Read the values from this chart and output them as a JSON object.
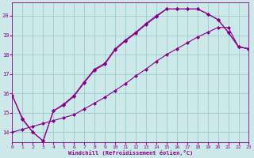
{
  "xlabel": "Windchill (Refroidissement éolien,°C)",
  "background_color": "#cce8e8",
  "grid_color": "#99cccc",
  "line_color": "#880088",
  "series": [
    {
      "x": [
        0,
        1,
        2,
        3,
        4,
        5,
        6,
        7,
        8,
        9,
        10,
        11,
        12,
        13,
        14,
        15,
        16,
        17,
        18,
        19,
        20,
        21,
        22,
        23
      ],
      "y": [
        15.9,
        14.7,
        14.0,
        13.55,
        15.1,
        15.4,
        15.85,
        16.55,
        17.2,
        17.5,
        18.25,
        18.7,
        19.1,
        19.55,
        19.95,
        20.35,
        20.35,
        20.35,
        20.35,
        20.1,
        19.8,
        19.15,
        18.4,
        18.3
      ]
    },
    {
      "x": [
        0,
        1,
        2,
        3,
        4,
        5,
        6,
        7,
        8,
        9,
        10,
        11,
        12,
        13,
        14,
        15,
        16,
        17,
        18,
        19,
        20,
        21,
        22,
        23
      ],
      "y": [
        15.9,
        14.65,
        14.0,
        13.55,
        15.1,
        15.45,
        15.9,
        16.6,
        17.25,
        17.55,
        18.3,
        18.75,
        19.15,
        19.6,
        20.0,
        20.35,
        20.35,
        20.35,
        20.35,
        20.1,
        19.8,
        19.15,
        18.4,
        18.3
      ]
    },
    {
      "x": [
        0,
        1,
        2,
        3,
        4,
        5,
        6,
        7,
        8,
        9,
        10,
        11,
        12,
        13,
        14,
        15,
        16,
        17,
        18,
        19,
        20,
        21,
        22,
        23
      ],
      "y": [
        14.0,
        14.15,
        14.3,
        14.45,
        14.6,
        14.75,
        14.9,
        15.2,
        15.5,
        15.8,
        16.15,
        16.5,
        16.9,
        17.25,
        17.65,
        18.0,
        18.3,
        18.6,
        18.9,
        19.15,
        19.4,
        19.4,
        18.4,
        18.3
      ]
    }
  ],
  "xlim": [
    0,
    23
  ],
  "ylim": [
    13.5,
    20.7
  ],
  "yticks": [
    14,
    15,
    16,
    17,
    18,
    19,
    20
  ],
  "xticks": [
    0,
    1,
    2,
    3,
    4,
    5,
    6,
    7,
    8,
    9,
    10,
    11,
    12,
    13,
    14,
    15,
    16,
    17,
    18,
    19,
    20,
    21,
    22,
    23
  ],
  "marker": "D",
  "markersize": 2.0,
  "linewidth": 0.8
}
